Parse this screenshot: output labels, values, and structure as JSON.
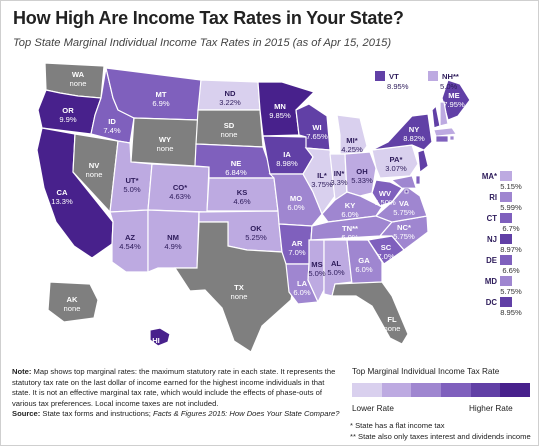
{
  "title": "How High Are Income Tax Rates in Your State?",
  "subtitle": "Top State Marginal  Individual Income Tax Rates in 2015 (as of Apr 15, 2015)",
  "colors": {
    "none": "#7f7f7f",
    "scale": [
      "#d9d0ee",
      "#bdaae1",
      "#9f86d0",
      "#7f60bd",
      "#6140a6",
      "#48218c"
    ],
    "text_dark": "#ffffff",
    "text_light": "#2d1b5a"
  },
  "states": [
    {
      "abbr": "WA",
      "rate": "none"
    },
    {
      "abbr": "OR",
      "rate": "9.9%"
    },
    {
      "abbr": "CA",
      "rate": "13.3%"
    },
    {
      "abbr": "NV",
      "rate": "none"
    },
    {
      "abbr": "ID",
      "rate": "7.4%"
    },
    {
      "abbr": "MT",
      "rate": "6.9%"
    },
    {
      "abbr": "WY",
      "rate": "none"
    },
    {
      "abbr": "UT*",
      "rate": "5.0%"
    },
    {
      "abbr": "AZ",
      "rate": "4.54%"
    },
    {
      "abbr": "CO*",
      "rate": "4.63%"
    },
    {
      "abbr": "NM",
      "rate": "4.9%"
    },
    {
      "abbr": "ND",
      "rate": "3.22%"
    },
    {
      "abbr": "SD",
      "rate": "none"
    },
    {
      "abbr": "NE",
      "rate": "6.84%"
    },
    {
      "abbr": "KS",
      "rate": "4.6%"
    },
    {
      "abbr": "OK",
      "rate": "5.25%"
    },
    {
      "abbr": "TX",
      "rate": "none"
    },
    {
      "abbr": "MN",
      "rate": "9.85%"
    },
    {
      "abbr": "IA",
      "rate": "8.98%"
    },
    {
      "abbr": "MO",
      "rate": "6.0%"
    },
    {
      "abbr": "AR",
      "rate": "7.0%"
    },
    {
      "abbr": "LA",
      "rate": "6.0%"
    },
    {
      "abbr": "WI",
      "rate": "7.65%"
    },
    {
      "abbr": "IL*",
      "rate": "3.75%"
    },
    {
      "abbr": "MI*",
      "rate": "4.25%"
    },
    {
      "abbr": "IN*",
      "rate": "3.3%"
    },
    {
      "abbr": "OH",
      "rate": "5.33%"
    },
    {
      "abbr": "KY",
      "rate": "6.0%"
    },
    {
      "abbr": "TN**",
      "rate": "6.0%"
    },
    {
      "abbr": "MS",
      "rate": "5.0%"
    },
    {
      "abbr": "AL",
      "rate": "5.0%"
    },
    {
      "abbr": "GA",
      "rate": "6.0%"
    },
    {
      "abbr": "FL",
      "rate": "none"
    },
    {
      "abbr": "SC",
      "rate": "7.0%"
    },
    {
      "abbr": "NC*",
      "rate": "5.75%"
    },
    {
      "abbr": "VA",
      "rate": "5.75%"
    },
    {
      "abbr": "WV",
      "rate": "6.50%"
    },
    {
      "abbr": "PA*",
      "rate": "3.07%"
    },
    {
      "abbr": "NY",
      "rate": "8.82%"
    },
    {
      "abbr": "ME",
      "rate": "7.95%"
    },
    {
      "abbr": "VT",
      "rate": "8.95%"
    },
    {
      "abbr": "NH**",
      "rate": "5.0%"
    },
    {
      "abbr": "AK",
      "rate": "none"
    },
    {
      "abbr": "HI",
      "rate": "11.0%"
    }
  ],
  "ne_callouts": [
    {
      "abbr": "MA*",
      "rate": "5.15%"
    },
    {
      "abbr": "RI",
      "rate": "5.99%"
    },
    {
      "abbr": "CT",
      "rate": "6.7%"
    },
    {
      "abbr": "NJ",
      "rate": "8.97%"
    },
    {
      "abbr": "DE",
      "rate": "6.6%"
    },
    {
      "abbr": "MD",
      "rate": "5.75%"
    },
    {
      "abbr": "DC",
      "rate": "8.95%"
    }
  ],
  "note": {
    "label": "Note:",
    "text": "Map shows top marginal rates: the maximum statutory rate in each state. It represents the statutory tax rate on the last dollar of income earned for the highest income individuals in that state. It is not an effective marginal tax rate, which would include the effects of phase-outs of various tax preferences. Local income taxes are not included.",
    "source_label": "Source:",
    "source_text": "State tax forms and instructions; ",
    "source_italic": "Facts & Figures 2015: How Does Your State Compare?"
  },
  "legend": {
    "title": "Top Marginal Individual Income Tax Rate",
    "low": "Lower Rate",
    "high": "Higher Rate"
  },
  "footnotes": {
    "one": "* State has a flat income tax",
    "two": "** State also only taxes interest and dividends income"
  }
}
